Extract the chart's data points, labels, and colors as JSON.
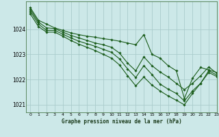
{
  "title": "Graphe pression niveau de la mer (hPa)",
  "background_color": "#cce8e8",
  "grid_color": "#aacccc",
  "line_color": "#1a5c1a",
  "xlim": [
    -0.5,
    23
  ],
  "ylim": [
    1020.7,
    1025.1
  ],
  "yticks": [
    1021,
    1022,
    1023,
    1024
  ],
  "xticks": [
    0,
    1,
    2,
    3,
    4,
    5,
    6,
    7,
    8,
    9,
    10,
    11,
    12,
    13,
    14,
    15,
    16,
    17,
    18,
    19,
    20,
    21,
    22,
    23
  ],
  "lines": [
    [
      1024.85,
      1024.35,
      1024.2,
      1024.05,
      1023.95,
      1023.85,
      1023.78,
      1023.72,
      1023.68,
      1023.62,
      1023.58,
      1023.52,
      1023.45,
      1023.38,
      1023.78,
      1023.0,
      1022.85,
      1022.55,
      1022.35,
      1021.25,
      1022.05,
      1022.48,
      1022.38,
      1022.28
    ],
    [
      1024.78,
      1024.28,
      1024.05,
      1024.02,
      1023.88,
      1023.75,
      1023.65,
      1023.55,
      1023.45,
      1023.38,
      1023.28,
      1023.05,
      1022.65,
      1022.35,
      1022.9,
      1022.55,
      1022.3,
      1022.1,
      1021.85,
      1021.6,
      1021.85,
      1022.15,
      1022.5,
      1022.25
    ],
    [
      1024.7,
      1024.2,
      1023.95,
      1023.95,
      1023.8,
      1023.65,
      1023.52,
      1023.42,
      1023.32,
      1023.2,
      1023.08,
      1022.82,
      1022.42,
      1022.08,
      1022.55,
      1022.2,
      1021.82,
      1021.62,
      1021.45,
      1021.15,
      1021.55,
      1021.85,
      1022.35,
      1022.18
    ],
    [
      1024.6,
      1024.1,
      1023.88,
      1023.88,
      1023.72,
      1023.55,
      1023.4,
      1023.28,
      1023.15,
      1023.0,
      1022.85,
      1022.58,
      1022.15,
      1021.75,
      1022.1,
      1021.78,
      1021.55,
      1021.35,
      1021.18,
      1021.0,
      1021.45,
      1021.85,
      1022.28,
      1022.12
    ]
  ]
}
